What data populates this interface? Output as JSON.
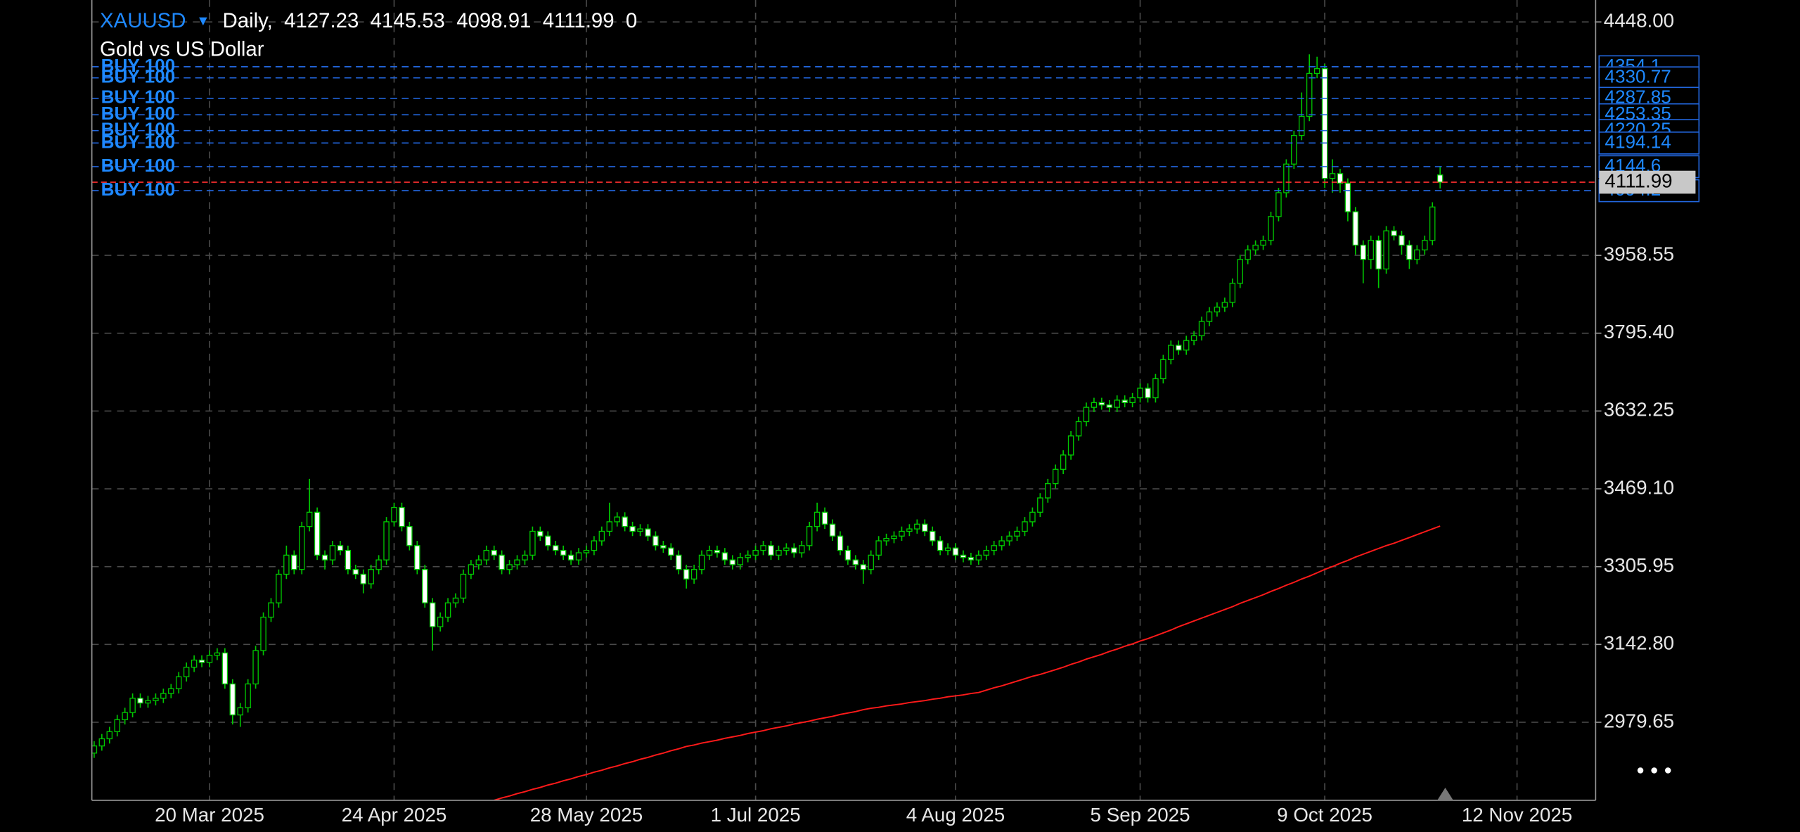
{
  "chart_data": {
    "type": "candlestick",
    "symbol": "XAUUSD",
    "timeframe": "Daily,",
    "description": "Gold vs US Dollar",
    "volume": 0,
    "bull_fill": "#000000",
    "bear_fill": "#ffffff",
    "wick_color": "#00c800",
    "price_line_color": "#ff3030",
    "grid": true,
    "ylim": [
      2816,
      4494
    ],
    "yticks": [
      {
        "value": 4448,
        "label": "4448.00"
      },
      3958.55,
      {
        "value": 3795.4,
        "label": "3795.40"
      },
      3632.25,
      {
        "value": 3469.1,
        "label": "3469.10"
      },
      3305.95,
      {
        "value": 3142.8,
        "label": "3142.80"
      },
      2979.65
    ],
    "categories": [
      null,
      null,
      null,
      null,
      null,
      null,
      null,
      null,
      null,
      null,
      null,
      null,
      null,
      null,
      null,
      "20 Mar 2025",
      null,
      null,
      null,
      null,
      null,
      null,
      null,
      null,
      null,
      null,
      null,
      null,
      null,
      null,
      null,
      null,
      null,
      null,
      null,
      null,
      null,
      null,
      null,
      "24 Apr 2025",
      null,
      null,
      null,
      null,
      null,
      null,
      null,
      null,
      null,
      null,
      null,
      null,
      null,
      null,
      null,
      null,
      null,
      null,
      null,
      null,
      null,
      null,
      null,
      null,
      "28 May 2025",
      null,
      null,
      null,
      null,
      null,
      null,
      null,
      null,
      null,
      null,
      null,
      null,
      null,
      null,
      null,
      null,
      null,
      null,
      null,
      null,
      null,
      "1 Jul 2025",
      null,
      null,
      null,
      null,
      null,
      null,
      null,
      null,
      null,
      null,
      null,
      null,
      null,
      null,
      null,
      null,
      null,
      null,
      null,
      null,
      null,
      null,
      null,
      null,
      null,
      "4 Aug 2025",
      null,
      null,
      null,
      null,
      null,
      null,
      null,
      null,
      null,
      null,
      null,
      null,
      null,
      null,
      null,
      null,
      null,
      null,
      null,
      null,
      null,
      null,
      null,
      "5 Sep 2025",
      null,
      null,
      null,
      null,
      null,
      null,
      null,
      null,
      null,
      null,
      null,
      null,
      null,
      null,
      null,
      null,
      null,
      null,
      null,
      null,
      null,
      null,
      null,
      "9 Oct 2025",
      null,
      null,
      null,
      null,
      null,
      null,
      null,
      null,
      null,
      null,
      null,
      null,
      null,
      null,
      null,
      null,
      null,
      null,
      null,
      null,
      null,
      null,
      null,
      null,
      "12 Nov 2025",
      null,
      null,
      null,
      null,
      null,
      null,
      null,
      null,
      null,
      null
    ],
    "open": [
      2915,
      2930,
      2945,
      2960,
      2985,
      3000,
      3030,
      3020,
      3025,
      3030,
      3040,
      3050,
      3075,
      3095,
      3110,
      3105,
      3120,
      3125,
      3060,
      2995,
      3010,
      3060,
      3130,
      3200,
      3230,
      3290,
      3330,
      3300,
      3390,
      3420,
      3330,
      3320,
      3350,
      3340,
      3300,
      3290,
      3270,
      3300,
      3320,
      3400,
      3430,
      3390,
      3350,
      3300,
      3230,
      3180,
      3200,
      3230,
      3240,
      3290,
      3310,
      3320,
      3340,
      3330,
      3300,
      3310,
      3320,
      3330,
      3380,
      3370,
      3350,
      3340,
      3330,
      3320,
      3335,
      3340,
      3360,
      3380,
      3400,
      3410,
      3390,
      3380,
      3385,
      3370,
      3350,
      3345,
      3330,
      3300,
      3280,
      3300,
      3330,
      3340,
      3335,
      3320,
      3310,
      3325,
      3330,
      3340,
      3350,
      3330,
      3340,
      3345,
      3335,
      3350,
      3390,
      3420,
      3395,
      3370,
      3340,
      3320,
      3310,
      3300,
      3330,
      3360,
      3365,
      3370,
      3380,
      3385,
      3395,
      3380,
      3360,
      3340,
      3345,
      3330,
      3325,
      3320,
      3330,
      3340,
      3350,
      3360,
      3370,
      3380,
      3400,
      3420,
      3450,
      3480,
      3510,
      3540,
      3580,
      3610,
      3640,
      3650,
      3645,
      3640,
      3655,
      3650,
      3660,
      3680,
      3660,
      3700,
      3740,
      3770,
      3760,
      3780,
      3790,
      3820,
      3840,
      3850,
      3860,
      3900,
      3950,
      3970,
      3980,
      3990,
      4040,
      4090,
      4150,
      4210,
      4250,
      4340,
      4350,
      4120,
      4130,
      4110,
      4050,
      3980,
      3950,
      3990,
      3930,
      4010,
      4000,
      3980,
      3950,
      3970,
      3990,
      4127.23,
      null,
      null,
      null,
      null,
      null,
      null,
      null,
      null,
      null,
      null,
      null,
      null,
      null,
      null,
      null,
      null,
      null,
      null,
      null,
      null
    ],
    "high": [
      2940,
      2955,
      2970,
      2995,
      3010,
      3040,
      3040,
      3035,
      3040,
      3050,
      3060,
      3085,
      3105,
      3120,
      3120,
      3130,
      3135,
      3135,
      3070,
      3020,
      3070,
      3140,
      3210,
      3240,
      3300,
      3350,
      3340,
      3400,
      3490,
      3430,
      3340,
      3360,
      3360,
      3350,
      3310,
      3300,
      3310,
      3330,
      3410,
      3440,
      3440,
      3400,
      3360,
      3310,
      3240,
      3210,
      3240,
      3250,
      3300,
      3320,
      3330,
      3350,
      3350,
      3340,
      3320,
      3330,
      3340,
      3390,
      3390,
      3380,
      3360,
      3350,
      3340,
      3345,
      3350,
      3370,
      3390,
      3440,
      3420,
      3420,
      3400,
      3395,
      3395,
      3380,
      3360,
      3355,
      3340,
      3310,
      3310,
      3340,
      3350,
      3350,
      3345,
      3330,
      3335,
      3340,
      3350,
      3360,
      3360,
      3350,
      3355,
      3355,
      3360,
      3400,
      3440,
      3430,
      3405,
      3380,
      3350,
      3330,
      3320,
      3340,
      3370,
      3375,
      3380,
      3390,
      3395,
      3405,
      3405,
      3390,
      3370,
      3355,
      3355,
      3340,
      3335,
      3340,
      3350,
      3360,
      3370,
      3380,
      3390,
      3410,
      3430,
      3460,
      3490,
      3520,
      3550,
      3590,
      3620,
      3650,
      3660,
      3660,
      3655,
      3665,
      3665,
      3670,
      3690,
      3690,
      3710,
      3750,
      3780,
      3780,
      3790,
      3800,
      3830,
      3850,
      3860,
      3870,
      3910,
      3960,
      3980,
      3990,
      4000,
      4050,
      4100,
      4160,
      4220,
      4300,
      4380,
      4375,
      4360,
      4160,
      4140,
      4120,
      4060,
      3990,
      4000,
      4000,
      4020,
      4020,
      4010,
      3990,
      3980,
      4000,
      4070,
      4145.53,
      null,
      null,
      null,
      null,
      null,
      null,
      null,
      null,
      null,
      null,
      null,
      null,
      null,
      null,
      null,
      null,
      null,
      null,
      null,
      null
    ],
    "low": [
      2905,
      2920,
      2935,
      2950,
      2975,
      2990,
      3010,
      3010,
      3015,
      3020,
      3030,
      3040,
      3065,
      3085,
      3095,
      3095,
      3110,
      3050,
      2975,
      2970,
      3000,
      3050,
      3120,
      3190,
      3220,
      3280,
      3290,
      3290,
      3380,
      3320,
      3300,
      3310,
      3330,
      3290,
      3280,
      3250,
      3260,
      3290,
      3310,
      3390,
      3380,
      3340,
      3290,
      3220,
      3130,
      3170,
      3190,
      3220,
      3230,
      3280,
      3300,
      3310,
      3320,
      3290,
      3290,
      3300,
      3310,
      3320,
      3360,
      3340,
      3330,
      3320,
      3310,
      3310,
      3325,
      3330,
      3350,
      3370,
      3390,
      3380,
      3370,
      3370,
      3360,
      3340,
      3335,
      3320,
      3290,
      3260,
      3270,
      3290,
      3320,
      3325,
      3310,
      3300,
      3300,
      3315,
      3320,
      3330,
      3320,
      3320,
      3330,
      3325,
      3325,
      3340,
      3380,
      3385,
      3360,
      3330,
      3310,
      3300,
      3270,
      3290,
      3320,
      3350,
      3355,
      3360,
      3370,
      3375,
      3370,
      3350,
      3330,
      3330,
      3320,
      3315,
      3310,
      3310,
      3320,
      3330,
      3340,
      3350,
      3360,
      3370,
      3390,
      3410,
      3440,
      3470,
      3500,
      3530,
      3570,
      3600,
      3630,
      3635,
      3630,
      3630,
      3640,
      3640,
      3650,
      3650,
      3650,
      3690,
      3730,
      3750,
      3750,
      3770,
      3780,
      3810,
      3830,
      3840,
      3850,
      3890,
      3940,
      3960,
      3970,
      3980,
      4030,
      4080,
      4140,
      4200,
      4240,
      4330,
      4100,
      4090,
      4090,
      4030,
      3960,
      3900,
      3930,
      3890,
      3920,
      3990,
      3960,
      3930,
      3940,
      3960,
      3980,
      4098.91,
      null,
      null,
      null,
      null,
      null,
      null,
      null,
      null,
      null,
      null,
      null,
      null,
      null,
      null,
      null,
      null,
      null,
      null,
      null,
      null
    ],
    "close": [
      2930,
      2945,
      2960,
      2985,
      3000,
      3030,
      3020,
      3025,
      3030,
      3040,
      3050,
      3075,
      3095,
      3110,
      3105,
      3120,
      3125,
      3060,
      2995,
      3010,
      3060,
      3130,
      3200,
      3230,
      3290,
      3330,
      3300,
      3390,
      3420,
      3330,
      3320,
      3350,
      3340,
      3300,
      3290,
      3270,
      3300,
      3320,
      3400,
      3430,
      3390,
      3350,
      3300,
      3230,
      3180,
      3200,
      3230,
      3240,
      3290,
      3310,
      3320,
      3340,
      3330,
      3300,
      3310,
      3320,
      3330,
      3380,
      3370,
      3350,
      3340,
      3330,
      3320,
      3335,
      3340,
      3360,
      3380,
      3400,
      3410,
      3390,
      3380,
      3385,
      3370,
      3350,
      3345,
      3330,
      3300,
      3280,
      3300,
      3330,
      3340,
      3335,
      3320,
      3310,
      3325,
      3330,
      3340,
      3350,
      3330,
      3340,
      3345,
      3335,
      3350,
      3390,
      3420,
      3395,
      3370,
      3340,
      3320,
      3310,
      3300,
      3330,
      3360,
      3365,
      3370,
      3380,
      3385,
      3395,
      3380,
      3360,
      3340,
      3345,
      3330,
      3325,
      3320,
      3330,
      3340,
      3350,
      3360,
      3370,
      3380,
      3400,
      3420,
      3450,
      3480,
      3510,
      3540,
      3580,
      3610,
      3640,
      3650,
      3645,
      3640,
      3655,
      3650,
      3660,
      3680,
      3660,
      3700,
      3740,
      3770,
      3760,
      3780,
      3790,
      3820,
      3840,
      3850,
      3860,
      3900,
      3950,
      3970,
      3980,
      3990,
      4040,
      4090,
      4150,
      4210,
      4250,
      4340,
      4350,
      4120,
      4130,
      4110,
      4050,
      3980,
      3950,
      3990,
      3930,
      4010,
      4000,
      3980,
      3950,
      3970,
      3990,
      4060,
      4111.99,
      null,
      null,
      null,
      null,
      null,
      null,
      null,
      null,
      null,
      null,
      null,
      null,
      null,
      null,
      null,
      null,
      null,
      null,
      null,
      null
    ],
    "ma": {
      "color": "#ff1a1a",
      "values": [
        null,
        null,
        null,
        null,
        null,
        null,
        null,
        null,
        null,
        null,
        null,
        null,
        null,
        null,
        null,
        null,
        null,
        null,
        null,
        null,
        null,
        null,
        null,
        null,
        null,
        null,
        null,
        null,
        null,
        null,
        null,
        null,
        null,
        null,
        null,
        null,
        null,
        null,
        null,
        null,
        null,
        null,
        null,
        null,
        null,
        null,
        null,
        null,
        null,
        null,
        null,
        null,
        2816,
        2821,
        2825,
        2830,
        2834,
        2839,
        2843,
        2848,
        2852,
        2857,
        2861,
        2866,
        2870,
        2875,
        2879,
        2884,
        2888,
        2893,
        2897,
        2902,
        2906,
        2911,
        2915,
        2920,
        2924,
        2929,
        2932,
        2936,
        2939,
        2942,
        2946,
        2949,
        2952,
        2956,
        2959,
        2962,
        2966,
        2969,
        2972,
        2976,
        2979,
        2982,
        2986,
        2989,
        2992,
        2996,
        2999,
        3002,
        3006,
        3009,
        3011,
        3014,
        3016,
        3018,
        3021,
        3023,
        3025,
        3028,
        3030,
        3033,
        3035,
        3037,
        3040,
        3042,
        3047,
        3052,
        3056,
        3061,
        3066,
        3071,
        3076,
        3080,
        3085,
        3090,
        3095,
        3101,
        3106,
        3112,
        3117,
        3122,
        3128,
        3133,
        3139,
        3144,
        3150,
        3155,
        3161,
        3167,
        3173,
        3180,
        3186,
        3192,
        3198,
        3204,
        3210,
        3216,
        3222,
        3229,
        3235,
        3241,
        3247,
        3254,
        3260,
        3267,
        3273,
        3280,
        3286,
        3293,
        3300,
        3306,
        3313,
        3319,
        3326,
        3332,
        3338,
        3344,
        3350,
        3355,
        3361,
        3367,
        3373,
        3379,
        3385,
        3391,
        null,
        null,
        null,
        null,
        null,
        null,
        null,
        null,
        null,
        null,
        null,
        null,
        null,
        null,
        null,
        null,
        null,
        null,
        null,
        null
      ]
    },
    "orders": [
      {
        "label": "BUY 100",
        "price": 4354.1
      },
      {
        "label": "BUY 100",
        "price": 4330.77
      },
      {
        "label": "BUY 100",
        "price": 4287.85
      },
      {
        "label": "BUY 100",
        "price": 4253.35
      },
      {
        "label": "BUY 100",
        "price": 4220.25
      },
      {
        "label": "BUY 100",
        "price": 4194.14
      },
      {
        "label": "BUY 100",
        "price": 4144.6
      },
      {
        "label": "BUY 100",
        "price": 4094.2
      }
    ]
  }
}
